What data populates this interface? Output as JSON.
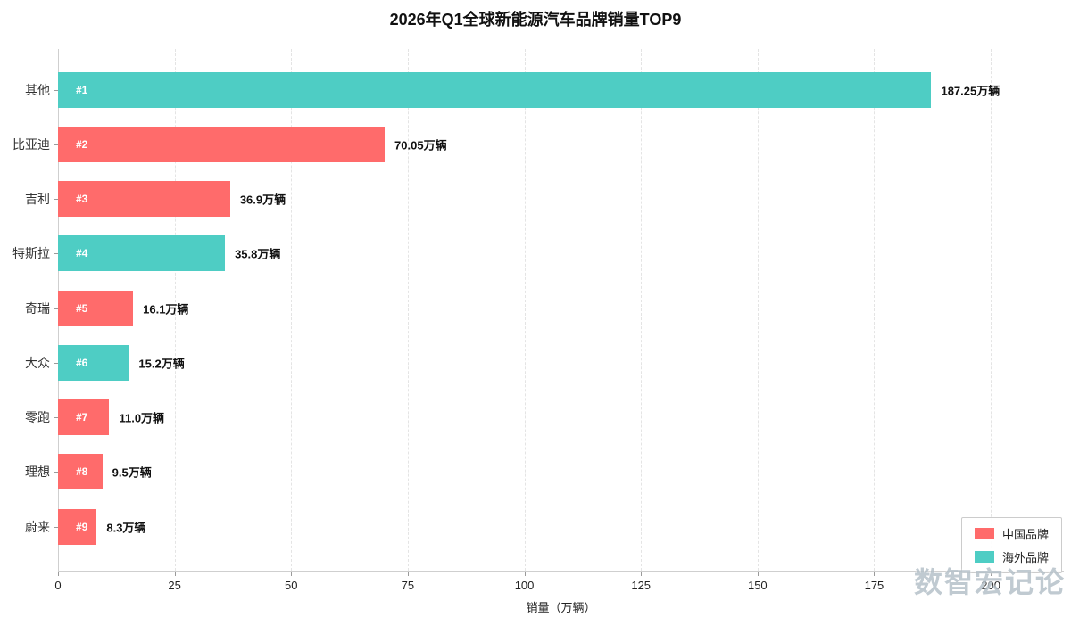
{
  "title": "2026年Q1全球新能源汽车品牌销量TOP9",
  "watermark": "数智宏记论",
  "chart_data": {
    "type": "bar",
    "orientation": "horizontal",
    "title": "2026年Q1全球新能源汽车品牌销量TOP9",
    "categories": [
      "其他",
      "比亚迪",
      "吉利",
      "特斯拉",
      "奇瑞",
      "大众",
      "零跑",
      "理想",
      "蔚来"
    ],
    "values": [
      187.25,
      70.05,
      36.9,
      35.8,
      16.1,
      15.2,
      11.0,
      9.5,
      8.3
    ],
    "value_labels": [
      "187.25万辆",
      "70.05万辆",
      "36.9万辆",
      "35.8万辆",
      "16.1万辆",
      "15.2万辆",
      "11.0万辆",
      "9.5万辆",
      "8.3万辆"
    ],
    "rank_labels": [
      "#1",
      "#2",
      "#3",
      "#4",
      "#5",
      "#6",
      "#7",
      "#8",
      "#9"
    ],
    "groups": [
      "overseas",
      "china",
      "china",
      "overseas",
      "china",
      "overseas",
      "china",
      "china",
      "china"
    ],
    "colors": {
      "china": "#FF6B6B",
      "overseas": "#4ECDC4"
    },
    "xlabel": "销量（万辆）",
    "ylabel": "",
    "x_ticks": [
      0,
      25,
      50,
      75,
      100,
      125,
      150,
      175,
      200
    ],
    "xlim": [
      0,
      215
    ],
    "grid": true,
    "legend_position": "lower right",
    "legend": [
      {
        "label": "中国品牌",
        "key": "china",
        "color": "#FF6B6B"
      },
      {
        "label": "海外品牌",
        "key": "overseas",
        "color": "#4ECDC4"
      }
    ]
  }
}
